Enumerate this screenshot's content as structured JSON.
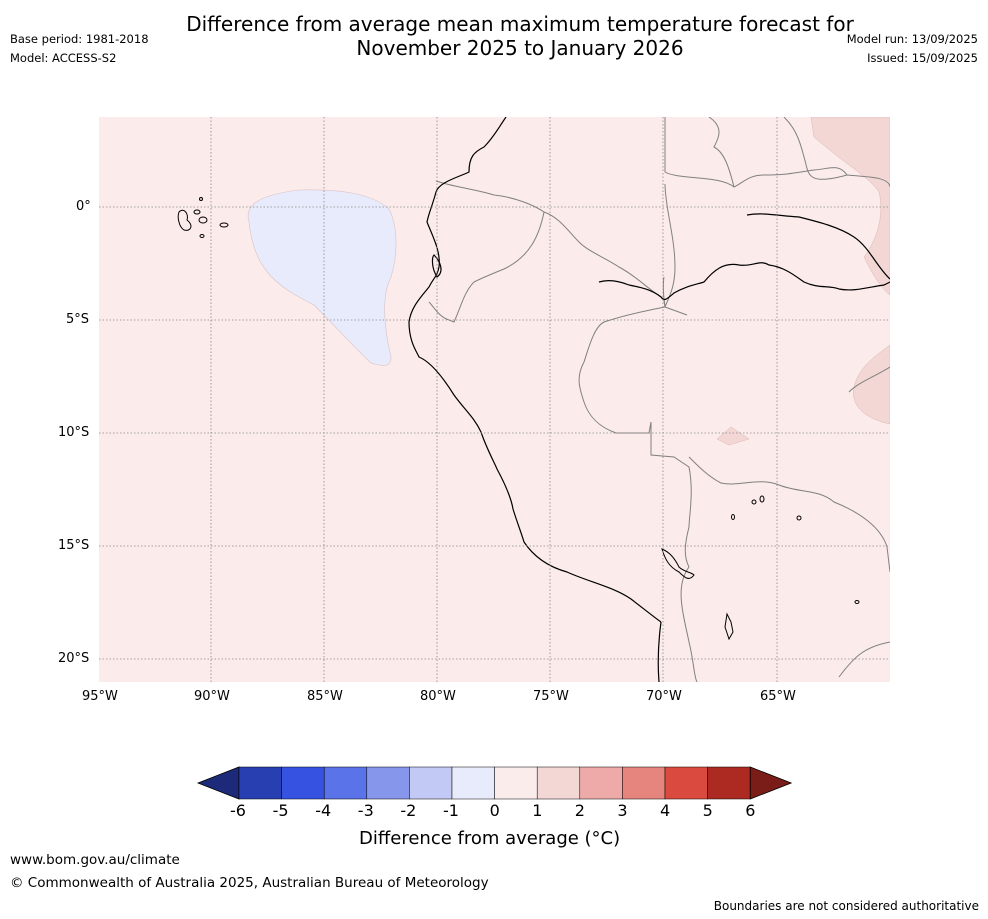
{
  "title_line1": "Difference from average mean maximum temperature forecast for",
  "title_line2": "November 2025 to January 2026",
  "base_period": "Base period: 1981-2018",
  "model": "Model: ACCESS-S2",
  "model_run": "Model run: 13/09/2025",
  "issued": "Issued: 15/09/2025",
  "lat_labels": [
    "0°",
    "5°S",
    "10°S",
    "15°S",
    "20°S"
  ],
  "lon_labels": [
    "95°W",
    "90°W",
    "85°W",
    "80°W",
    "75°W",
    "70°W",
    "65°W"
  ],
  "colorbar": {
    "ticks": [
      "-6",
      "-5",
      "-4",
      "-3",
      "-2",
      "-1",
      "0",
      "1",
      "2",
      "3",
      "4",
      "5",
      "6"
    ],
    "colors": [
      "#1d2a7a",
      "#273fb0",
      "#3552e0",
      "#5b73e8",
      "#8696ea",
      "#c3c9f5",
      "#e8ebfb",
      "#fbecec",
      "#f2d7d5",
      "#edaaa8",
      "#e6857e",
      "#da4a3e",
      "#ad2a22",
      "#7a1d18"
    ],
    "label": "Difference from average ($^\\circ$C)",
    "label_display": "Difference from average (°C)"
  },
  "map_colors": {
    "background": "#fbebea",
    "cool_anomaly": "#e8ebfb",
    "warm_anomaly": "#f2d7d5",
    "coast": "#000000",
    "borders": "#808080",
    "grid": "#888888"
  },
  "map_extent": {
    "lon_min": -95,
    "lon_max": -60,
    "lat_min": -21,
    "lat_max": 4
  },
  "footer_url": "www.bom.gov.au/climate",
  "footer_copyright": "© Commonwealth of Australia 2025, Australian Bureau of Meteorology",
  "disclaimer": "Boundaries are not considered authoritative"
}
